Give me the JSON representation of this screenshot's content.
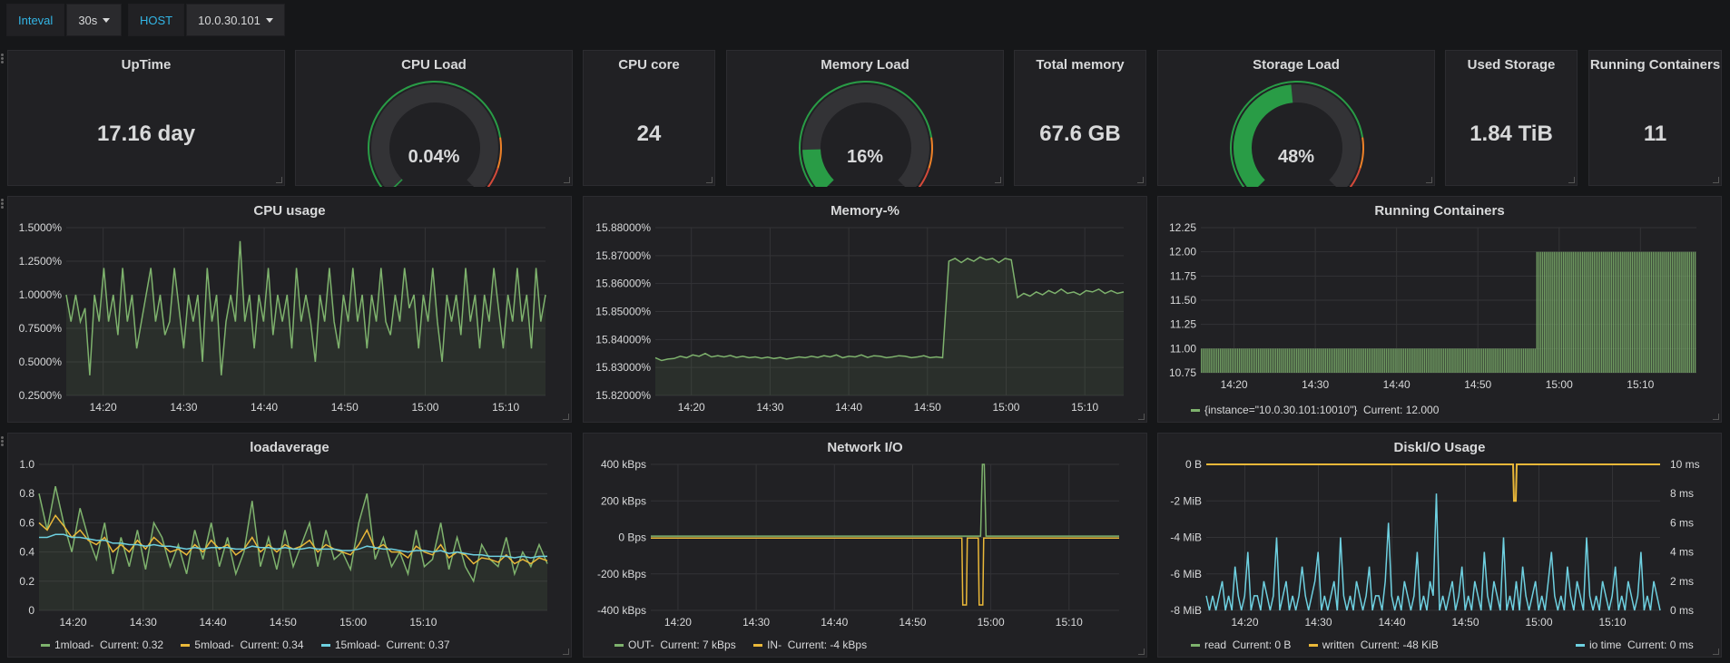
{
  "toolbar": {
    "interval_label": "Inteval",
    "interval_value": "30s",
    "host_label": "HOST",
    "host_value": "10.0.30.101"
  },
  "colors": {
    "green": "#7eb26d",
    "yellow": "#eab839",
    "cyan": "#6ed0e0",
    "gauge_green": "#299c46",
    "gauge_orange": "#ed8128",
    "gauge_red": "#d44a3a"
  },
  "stats": {
    "uptime": {
      "title": "UpTime",
      "value": "17.16 day"
    },
    "cpu_core": {
      "title": "CPU core",
      "value": "24"
    },
    "total_memory": {
      "title": "Total memory",
      "value": "67.6 GB"
    },
    "used_storage": {
      "title": "Used Storage",
      "value": "1.84 TiB"
    },
    "running_containers": {
      "title": "Running Containers",
      "value": "11"
    }
  },
  "gauges": {
    "cpu_load": {
      "title": "CPU Load",
      "value": "0.04%",
      "fraction": 0.0004
    },
    "memory_load": {
      "title": "Memory Load",
      "value": "16%",
      "fraction": 0.16
    },
    "storage_load": {
      "title": "Storage Load",
      "value": "48%",
      "fraction": 0.48
    }
  },
  "chart_data": [
    {
      "id": "cpu_usage",
      "type": "line",
      "title": "CPU usage",
      "yticks": [
        "1.5000%",
        "1.2500%",
        "1.0000%",
        "0.7500%",
        "0.5000%",
        "0.2500%"
      ],
      "xticks": [
        "14:20",
        "14:30",
        "14:40",
        "14:50",
        "15:00",
        "15:10"
      ],
      "series": [
        {
          "values": [
            1.0,
            0.8,
            1.0,
            0.8,
            0.9,
            0.4,
            1.0,
            0.8,
            1.2,
            0.8,
            1.0,
            0.7,
            1.2,
            0.8,
            1.0,
            0.6,
            0.8,
            1.0,
            1.2,
            0.8,
            1.0,
            0.7,
            0.8,
            1.2,
            0.9,
            0.6,
            1.0,
            0.8,
            1.0,
            0.5,
            1.2,
            0.8,
            1.0,
            0.4,
            0.8,
            1.0,
            0.8,
            1.4,
            0.8,
            1.0,
            0.6,
            1.0,
            0.8,
            1.2,
            0.7,
            1.0,
            0.8,
            1.0,
            0.6,
            1.2,
            0.8,
            1.0,
            0.8,
            0.5,
            1.0,
            0.8,
            1.2,
            0.8,
            0.6,
            1.0,
            0.8,
            1.2,
            0.8,
            1.0,
            0.6,
            1.0,
            0.8,
            1.2,
            0.8,
            0.7,
            1.0,
            0.8,
            1.2,
            0.9,
            1.0,
            0.6,
            1.0,
            0.8,
            1.2,
            0.8,
            0.5,
            1.0,
            0.8,
            1.0,
            0.7,
            1.2,
            0.8,
            1.0,
            0.6,
            1.0,
            0.8,
            1.2,
            0.9,
            0.6,
            1.0,
            0.8,
            1.2,
            0.8,
            1.0,
            0.6,
            1.2,
            0.8,
            1.0
          ]
        }
      ]
    },
    {
      "id": "memory_pct",
      "type": "line",
      "title": "Memory-%",
      "yticks": [
        "15.88000%",
        "15.87000%",
        "15.86000%",
        "15.85000%",
        "15.84000%",
        "15.83000%",
        "15.82000%"
      ],
      "xticks": [
        "14:20",
        "14:30",
        "14:40",
        "14:50",
        "15:00",
        "15:10"
      ],
      "series": [
        {
          "values": [
            15.8335,
            15.8325,
            15.833,
            15.8332,
            15.834,
            15.8335,
            15.8345,
            15.834,
            15.835,
            15.8338,
            15.8342,
            15.8338,
            15.8343,
            15.8336,
            15.834,
            15.8335,
            15.8338,
            15.8333,
            15.8337,
            15.8332,
            15.8336,
            15.833,
            15.8334,
            15.8338,
            15.8335,
            15.834,
            15.8336,
            15.8342,
            15.8338,
            15.8345,
            15.8335,
            15.834,
            15.8338,
            15.8345,
            15.8336,
            15.8342,
            15.834,
            15.8335,
            15.8338,
            15.8342,
            15.834,
            15.8335,
            15.8338,
            15.8342,
            15.8335,
            15.8338,
            15.8335,
            15.868,
            15.869,
            15.8675,
            15.869,
            15.868,
            15.8695,
            15.8685,
            15.869,
            15.8675,
            15.869,
            15.8685,
            15.855,
            15.8565,
            15.8555,
            15.857,
            15.856,
            15.8575,
            15.8565,
            15.858,
            15.8565,
            15.857,
            15.856,
            15.8575,
            15.857,
            15.858,
            15.8565,
            15.8575,
            15.8565,
            15.857
          ]
        }
      ]
    },
    {
      "id": "running_containers",
      "type": "bar",
      "title": "Running Containers",
      "yticks": [
        "12.25",
        "12.00",
        "11.75",
        "11.50",
        "11.25",
        "11.00",
        "10.75"
      ],
      "xticks": [
        "14:20",
        "14:30",
        "14:40",
        "14:50",
        "15:00",
        "15:10"
      ],
      "legend": [
        {
          "name": "{instance=\"10.0.30.101:10010\"}",
          "current": "Current: 12.000"
        }
      ],
      "series": [
        {
          "values_first": 11,
          "values_second": 12,
          "switch_fraction": 0.675
        }
      ]
    },
    {
      "id": "loadaverage",
      "type": "line",
      "title": "loadaverage",
      "yticks": [
        "1.0",
        "0.8",
        "0.6",
        "0.4",
        "0.2",
        "0"
      ],
      "xticks": [
        "14:20",
        "14:30",
        "14:40",
        "14:50",
        "15:00",
        "15:10"
      ],
      "legend": [
        {
          "name": "1mload-",
          "current": "Current: 0.32"
        },
        {
          "name": "5mload-",
          "current": "Current: 0.34"
        },
        {
          "name": "15mload-",
          "current": "Current: 0.37"
        }
      ],
      "series": [
        {
          "values": [
            0.8,
            0.55,
            0.85,
            0.6,
            0.4,
            0.7,
            0.5,
            0.35,
            0.6,
            0.25,
            0.5,
            0.3,
            0.55,
            0.28,
            0.6,
            0.5,
            0.3,
            0.45,
            0.25,
            0.55,
            0.35,
            0.6,
            0.3,
            0.5,
            0.25,
            0.4,
            0.75,
            0.3,
            0.5,
            0.28,
            0.55,
            0.3,
            0.45,
            0.6,
            0.3,
            0.55,
            0.35,
            0.4,
            0.28,
            0.6,
            0.8,
            0.35,
            0.5,
            0.3,
            0.4,
            0.25,
            0.55,
            0.3,
            0.35,
            0.6,
            0.28,
            0.5,
            0.3,
            0.2,
            0.45,
            0.35,
            0.3,
            0.5,
            0.25,
            0.4,
            0.3,
            0.45,
            0.32
          ]
        },
        {
          "values": [
            0.6,
            0.55,
            0.65,
            0.58,
            0.5,
            0.55,
            0.48,
            0.45,
            0.5,
            0.4,
            0.45,
            0.4,
            0.48,
            0.42,
            0.5,
            0.45,
            0.4,
            0.42,
            0.38,
            0.45,
            0.4,
            0.48,
            0.42,
            0.45,
            0.38,
            0.42,
            0.5,
            0.4,
            0.45,
            0.4,
            0.45,
            0.42,
            0.44,
            0.48,
            0.4,
            0.45,
            0.42,
            0.4,
            0.38,
            0.45,
            0.55,
            0.42,
            0.45,
            0.4,
            0.4,
            0.36,
            0.44,
            0.4,
            0.38,
            0.45,
            0.36,
            0.4,
            0.38,
            0.32,
            0.36,
            0.35,
            0.33,
            0.38,
            0.32,
            0.35,
            0.32,
            0.36,
            0.34
          ]
        },
        {
          "values": [
            0.5,
            0.5,
            0.52,
            0.52,
            0.5,
            0.5,
            0.49,
            0.48,
            0.48,
            0.46,
            0.46,
            0.45,
            0.45,
            0.44,
            0.45,
            0.44,
            0.44,
            0.43,
            0.42,
            0.43,
            0.42,
            0.43,
            0.43,
            0.43,
            0.42,
            0.42,
            0.44,
            0.43,
            0.43,
            0.42,
            0.43,
            0.42,
            0.42,
            0.43,
            0.42,
            0.42,
            0.42,
            0.41,
            0.41,
            0.42,
            0.44,
            0.43,
            0.42,
            0.42,
            0.41,
            0.4,
            0.41,
            0.41,
            0.4,
            0.41,
            0.39,
            0.4,
            0.39,
            0.38,
            0.38,
            0.37,
            0.37,
            0.37,
            0.36,
            0.37,
            0.36,
            0.37,
            0.37
          ]
        }
      ]
    },
    {
      "id": "network_io",
      "type": "line",
      "title": "Network I/O",
      "yticks": [
        "400 kBps",
        "200 kBps",
        "0 Bps",
        "-200 kBps",
        "-400 kBps"
      ],
      "xticks": [
        "14:20",
        "14:30",
        "14:40",
        "14:50",
        "15:00",
        "15:10"
      ],
      "legend": [
        {
          "name": "OUT-",
          "current": "Current: 7 kBps"
        },
        {
          "name": "IN-",
          "current": "Current: -4 kBps"
        }
      ],
      "series": [
        {
          "name": "OUT-",
          "baseline": 7,
          "spike": 400,
          "spike_fraction": 0.71
        },
        {
          "name": "IN-",
          "baseline": -4,
          "dips": [
            -370,
            -370
          ],
          "dip_fractions": [
            0.67,
            0.705
          ]
        }
      ]
    },
    {
      "id": "disk_io",
      "type": "line",
      "title": "DiskI/O Usage",
      "yticks": [
        "0 B",
        "-2 MiB",
        "-4 MiB",
        "-6 MiB",
        "-8 MiB"
      ],
      "y2ticks": [
        "10 ms",
        "8 ms",
        "6 ms",
        "4 ms",
        "2 ms",
        "0 ms"
      ],
      "xticks": [
        "14:20",
        "14:30",
        "14:40",
        "14:50",
        "15:00",
        "15:10"
      ],
      "legend": [
        {
          "name": "read",
          "current": "Current: 0 B"
        },
        {
          "name": "written",
          "current": "Current: -48 KiB"
        },
        {
          "name": "io time",
          "current": "Current: 0 ms"
        }
      ],
      "series": [
        {
          "name": "io time",
          "values": [
            1,
            0,
            1,
            0,
            1,
            2,
            0,
            1,
            0,
            3,
            1,
            0,
            1,
            4,
            0,
            1,
            1,
            0,
            2,
            1,
            0,
            1,
            5,
            0,
            1,
            2,
            0,
            1,
            0,
            1,
            3,
            1,
            0,
            1,
            2,
            4,
            0,
            1,
            0,
            1,
            2,
            0,
            5,
            1,
            0,
            1,
            0,
            2,
            1,
            0,
            1,
            3,
            0,
            1,
            1,
            0,
            2,
            6,
            1,
            0,
            1,
            0,
            2,
            1,
            0,
            1,
            4,
            0,
            1,
            0,
            2,
            1,
            8,
            0,
            1,
            0,
            1,
            2,
            0,
            1,
            3,
            0,
            1,
            0,
            2,
            1,
            0,
            4,
            1,
            0,
            2,
            1,
            0,
            5,
            0,
            1,
            0,
            2,
            0,
            3,
            1,
            0,
            1,
            2,
            0,
            1,
            0,
            2,
            4,
            1,
            0,
            1,
            0,
            3,
            1,
            0,
            2,
            1,
            0,
            5,
            1,
            0,
            1,
            0,
            2,
            1,
            0,
            1,
            3,
            0,
            1,
            0,
            2,
            1,
            0,
            1,
            4,
            0,
            1,
            0,
            2,
            1,
            0
          ]
        },
        {
          "name": "written",
          "baseline": 0,
          "dip": -2,
          "dip_fraction": 0.68
        }
      ]
    }
  ]
}
